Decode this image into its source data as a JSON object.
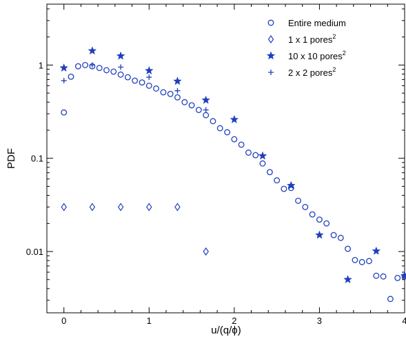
{
  "chart_data": {
    "type": "scatter",
    "xlabel": "u/(q/ϕ)",
    "ylabel": "PDF",
    "yscale": "log",
    "xlim": [
      -0.2,
      4.0
    ],
    "ylim": [
      0.0022,
      4.5
    ],
    "x_ticks": [
      {
        "value": 0,
        "label": "0"
      },
      {
        "value": 1,
        "label": "1"
      },
      {
        "value": 2,
        "label": "2"
      },
      {
        "value": 3,
        "label": "3"
      },
      {
        "value": 4,
        "label": "4"
      }
    ],
    "y_ticks": [
      {
        "value": 0.01,
        "label": "0.01"
      },
      {
        "value": 0.1,
        "label": "0.1"
      },
      {
        "value": 1,
        "label": "1"
      }
    ],
    "grid": false,
    "legend_position": "top-right",
    "color": "#1f3fbf",
    "series": [
      {
        "name": "Entire medium",
        "legend_base": "Entire medium",
        "legend_sup": "",
        "marker": "circle",
        "points": [
          [
            0.0,
            0.31
          ],
          [
            0.083,
            0.75
          ],
          [
            0.167,
            0.97
          ],
          [
            0.25,
            1.0
          ],
          [
            0.333,
            0.97
          ],
          [
            0.417,
            0.93
          ],
          [
            0.5,
            0.88
          ],
          [
            0.583,
            0.85
          ],
          [
            0.667,
            0.79
          ],
          [
            0.75,
            0.74
          ],
          [
            0.833,
            0.68
          ],
          [
            0.917,
            0.65
          ],
          [
            1.0,
            0.6
          ],
          [
            1.083,
            0.56
          ],
          [
            1.167,
            0.51
          ],
          [
            1.25,
            0.49
          ],
          [
            1.333,
            0.45
          ],
          [
            1.417,
            0.4
          ],
          [
            1.5,
            0.37
          ],
          [
            1.583,
            0.33
          ],
          [
            1.667,
            0.29
          ],
          [
            1.75,
            0.25
          ],
          [
            1.833,
            0.21
          ],
          [
            1.917,
            0.19
          ],
          [
            2.0,
            0.16
          ],
          [
            2.083,
            0.14
          ],
          [
            2.167,
            0.115
          ],
          [
            2.25,
            0.108
          ],
          [
            2.333,
            0.088
          ],
          [
            2.417,
            0.071
          ],
          [
            2.5,
            0.058
          ],
          [
            2.583,
            0.047
          ],
          [
            2.667,
            0.048
          ],
          [
            2.75,
            0.035
          ],
          [
            2.833,
            0.03
          ],
          [
            2.917,
            0.025
          ],
          [
            3.0,
            0.022
          ],
          [
            3.083,
            0.02
          ],
          [
            3.167,
            0.015
          ],
          [
            3.25,
            0.014
          ],
          [
            3.333,
            0.0107
          ],
          [
            3.417,
            0.0081
          ],
          [
            3.5,
            0.0077
          ],
          [
            3.583,
            0.0079
          ],
          [
            3.667,
            0.0055
          ],
          [
            3.75,
            0.0054
          ],
          [
            3.833,
            0.0031
          ],
          [
            3.917,
            0.0052
          ],
          [
            4.0,
            0.0054
          ]
        ]
      },
      {
        "name": "1 x 1 pores^2",
        "legend_base": "1 x 1 pores",
        "legend_sup": "2",
        "marker": "diamond",
        "points": [
          [
            0.0,
            0.03
          ],
          [
            0.333,
            0.03
          ],
          [
            0.667,
            0.03
          ],
          [
            1.0,
            0.03
          ],
          [
            1.333,
            0.03
          ],
          [
            1.667,
            0.01
          ]
        ]
      },
      {
        "name": "10 x 10 pores^2",
        "legend_base": "10 x 10 pores",
        "legend_sup": "2",
        "marker": "star",
        "points": [
          [
            0.0,
            0.93
          ],
          [
            0.333,
            1.42
          ],
          [
            0.667,
            1.25
          ],
          [
            1.0,
            0.87
          ],
          [
            1.333,
            0.67
          ],
          [
            1.667,
            0.42
          ],
          [
            2.0,
            0.26
          ],
          [
            2.333,
            0.106
          ],
          [
            2.667,
            0.051
          ],
          [
            3.0,
            0.015
          ],
          [
            3.333,
            0.005
          ],
          [
            3.667,
            0.0101
          ],
          [
            4.0,
            0.0055
          ]
        ]
      },
      {
        "name": "2 x 2 pores^2",
        "legend_base": "2 x 2 pores",
        "legend_sup": "2",
        "marker": "plus",
        "points": [
          [
            0.0,
            0.68
          ],
          [
            0.333,
            1.0
          ],
          [
            0.667,
            0.95
          ],
          [
            1.0,
            0.74
          ],
          [
            1.333,
            0.53
          ],
          [
            1.667,
            0.33
          ]
        ]
      }
    ]
  }
}
